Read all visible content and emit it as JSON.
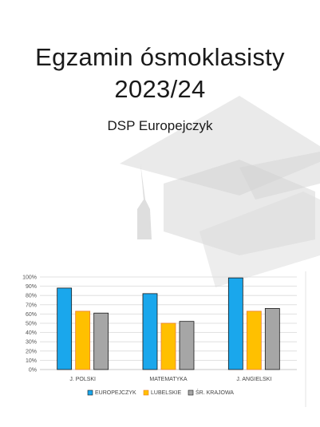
{
  "header": {
    "title_line1": "Egzamin ósmoklasisty",
    "title_line2": "2023/24",
    "subtitle": "DSP Europejczyk"
  },
  "colors": {
    "europejczyk": "#1aa7ec",
    "lubelskie": "#ffc000",
    "krajowa": "#a6a6a6",
    "lubelskie_border": "#ed7d31",
    "watermark": "#d9d9d9"
  },
  "icons": {
    "background": "graduation-cap-and-diploma-icon"
  },
  "chart_data": {
    "type": "bar",
    "categories": [
      "J. POLSKI",
      "MATEMATYKA",
      "J. ANGIELSKI"
    ],
    "series": [
      {
        "name": "EUROPEJCZYK",
        "values": [
          88,
          82,
          99
        ]
      },
      {
        "name": "LUBELSKIE",
        "values": [
          63,
          50,
          63
        ]
      },
      {
        "name": "ŚR. KRAJOWA",
        "values": [
          61,
          52,
          66
        ]
      }
    ],
    "ylim": [
      0,
      100
    ],
    "yticks": [
      "0%",
      "10%",
      "20%",
      "30%",
      "40%",
      "50%",
      "60%",
      "70%",
      "80%",
      "90%",
      "100%"
    ],
    "grid": true,
    "legend_position": "bottom"
  }
}
